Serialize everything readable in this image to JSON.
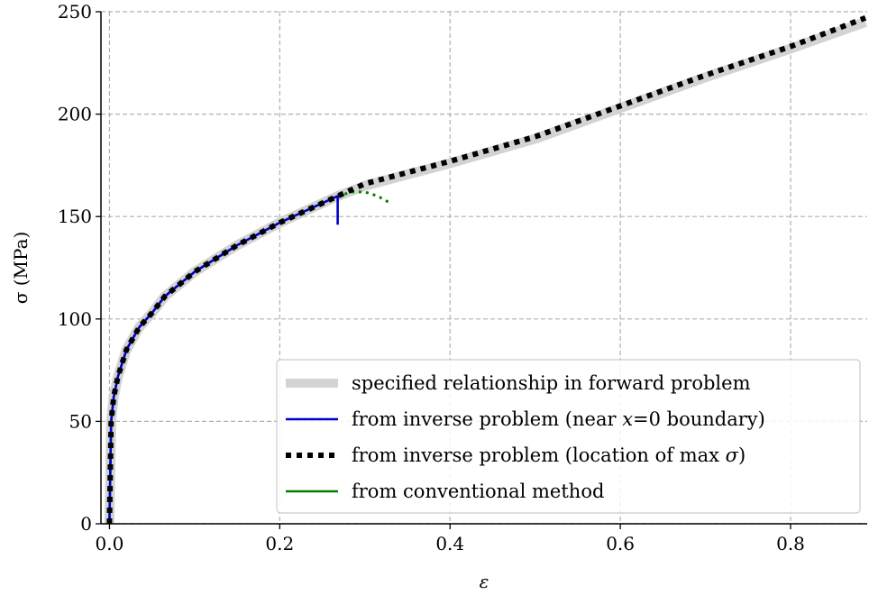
{
  "chart_data": {
    "type": "line",
    "xlabel": "ε",
    "ylabel": "σ (MPa)",
    "xlim": [
      -0.01,
      0.89
    ],
    "ylim": [
      0,
      250
    ],
    "x_ticks": [
      0.0,
      0.2,
      0.4,
      0.6,
      0.8
    ],
    "x_tick_labels": [
      "0.0",
      "0.2",
      "0.4",
      "0.6",
      "0.8"
    ],
    "y_ticks": [
      0,
      50,
      100,
      150,
      200,
      250
    ],
    "y_tick_labels": [
      "0",
      "50",
      "100",
      "150",
      "200",
      "250"
    ],
    "grid": true,
    "legend_position": "lower-right",
    "series": [
      {
        "name": "specified relationship in forward problem",
        "color": "#d3d3d3",
        "style": "thick-solid",
        "x": [
          0.0,
          0.002,
          0.005,
          0.01,
          0.02,
          0.035,
          0.05,
          0.065,
          0.1,
          0.15,
          0.2,
          0.268,
          0.3,
          0.4,
          0.5,
          0.6,
          0.7,
          0.8,
          0.888
        ],
        "y": [
          0,
          50,
          62,
          72,
          85,
          96,
          103,
          111,
          123,
          136,
          147,
          160,
          165,
          176,
          188,
          203,
          218,
          232,
          245
        ]
      },
      {
        "name": "from inverse problem (near x=0 boundary)",
        "color": "#0000cc",
        "style": "solid",
        "x": [
          0.0,
          0.002,
          0.005,
          0.01,
          0.02,
          0.035,
          0.05,
          0.065,
          0.1,
          0.15,
          0.2,
          0.268,
          0.268
        ],
        "y": [
          0,
          50,
          62,
          72,
          85,
          96,
          103,
          111,
          123,
          136,
          147,
          160,
          146
        ]
      },
      {
        "name": "from inverse problem (location of max σ)",
        "color": "#000000",
        "style": "dotted",
        "x": [
          0.0,
          0.002,
          0.005,
          0.01,
          0.02,
          0.035,
          0.05,
          0.065,
          0.1,
          0.15,
          0.2,
          0.268,
          0.3,
          0.4,
          0.5,
          0.6,
          0.7,
          0.8,
          0.888
        ],
        "y": [
          0,
          50,
          62,
          72,
          85,
          96,
          103,
          111,
          123,
          136,
          147,
          160,
          166,
          177,
          189,
          204,
          219,
          233,
          247
        ]
      },
      {
        "name": "from conventional method",
        "color": "#008000",
        "style": "solid",
        "x": [
          0.0,
          0.002,
          0.005,
          0.01,
          0.02,
          0.035,
          0.05,
          0.065,
          0.1,
          0.15,
          0.2,
          0.268
        ],
        "y": [
          0,
          50,
          62,
          72,
          85,
          96,
          103,
          111,
          123,
          136,
          147,
          160
        ]
      },
      {
        "name": "",
        "color": "#008000",
        "style": "dotted-extension",
        "x": [
          0.268,
          0.285,
          0.3,
          0.315,
          0.328
        ],
        "y": [
          160,
          162,
          162,
          160,
          157
        ]
      }
    ],
    "legend": [
      {
        "label": "specified relationship in forward problem",
        "color": "#d3d3d3",
        "style": "thick-solid"
      },
      {
        "label": "from inverse problem (near ",
        "math": "x",
        "suffix": "=0 boundary)",
        "color": "#0000cc",
        "style": "solid"
      },
      {
        "label": "from inverse problem (location of max ",
        "math": "σ",
        "suffix": ")",
        "color": "#000000",
        "style": "dotted"
      },
      {
        "label": "from conventional method",
        "color": "#008000",
        "style": "solid"
      }
    ]
  }
}
